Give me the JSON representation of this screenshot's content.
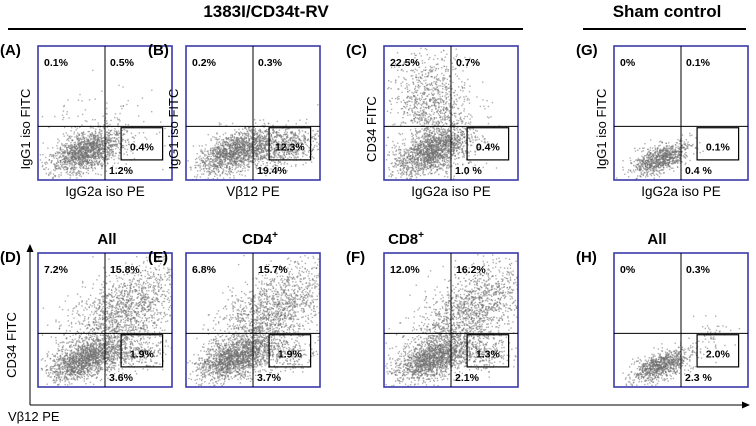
{
  "headers": {
    "left_group": "1383I/CD34t-RV",
    "right_group": "Sham control"
  },
  "subheaders": {
    "d": "All",
    "e": "CD4",
    "e_sup": "+",
    "f": "CD8",
    "f_sup": "+",
    "h": "All"
  },
  "panels": [
    {
      "id": "A",
      "label": "(A)",
      "ylabel": "IgG1 iso FITC",
      "xlabel": "IgG2a iso PE",
      "ul": "0.1%",
      "ur": "0.5%",
      "box": "0.4%",
      "lr": "1.2%",
      "density": "low"
    },
    {
      "id": "B",
      "label": "(B)",
      "ylabel": "IgG1 iso FITC",
      "xlabel": "Vβ12 PE",
      "ul": "0.2%",
      "ur": "0.3%",
      "box": "12.3%",
      "lr": "19.4%",
      "density": "right"
    },
    {
      "id": "C",
      "label": "(C)",
      "ylabel": "CD34 FITC",
      "xlabel": "IgG2a iso PE",
      "ul": "22.5%",
      "ur": "0.7%",
      "box": "0.4%",
      "lr": "1.0 %",
      "density": "up"
    },
    {
      "id": "G",
      "label": "(G)",
      "ylabel": "IgG1 iso FITC",
      "xlabel": "IgG2a iso PE",
      "ul": "0%",
      "ur": "0.1%",
      "box": "0.1%",
      "lr": "0.4 %",
      "density": "sham"
    },
    {
      "id": "D",
      "label": "(D)",
      "ylabel": "",
      "xlabel": "",
      "ul": "7.2%",
      "ur": "15.8%",
      "box": "1.9%",
      "lr": "3.6%",
      "density": "diag"
    },
    {
      "id": "E",
      "label": "(E)",
      "ylabel": "",
      "xlabel": "",
      "ul": "6.8%",
      "ur": "15.7%",
      "box": "1.9%",
      "lr": "3.7%",
      "density": "diag"
    },
    {
      "id": "F",
      "label": "(F)",
      "ylabel": "",
      "xlabel": "",
      "ul": "12.0%",
      "ur": "16.2%",
      "box": "1.3%",
      "lr": "2.1%",
      "density": "diag"
    },
    {
      "id": "H",
      "label": "(H)",
      "ylabel": "",
      "xlabel": "",
      "ul": "0%",
      "ur": "0.3%",
      "box": "2.0%",
      "lr": "2.3 %",
      "density": "sham2"
    }
  ],
  "bottom_axis": {
    "ylabel": "CD34 FITC",
    "xlabel": "Vβ12 PE"
  },
  "colors": {
    "frame": "#3a3aa8",
    "gate": "#000000",
    "dots": "#6e6e6e"
  }
}
